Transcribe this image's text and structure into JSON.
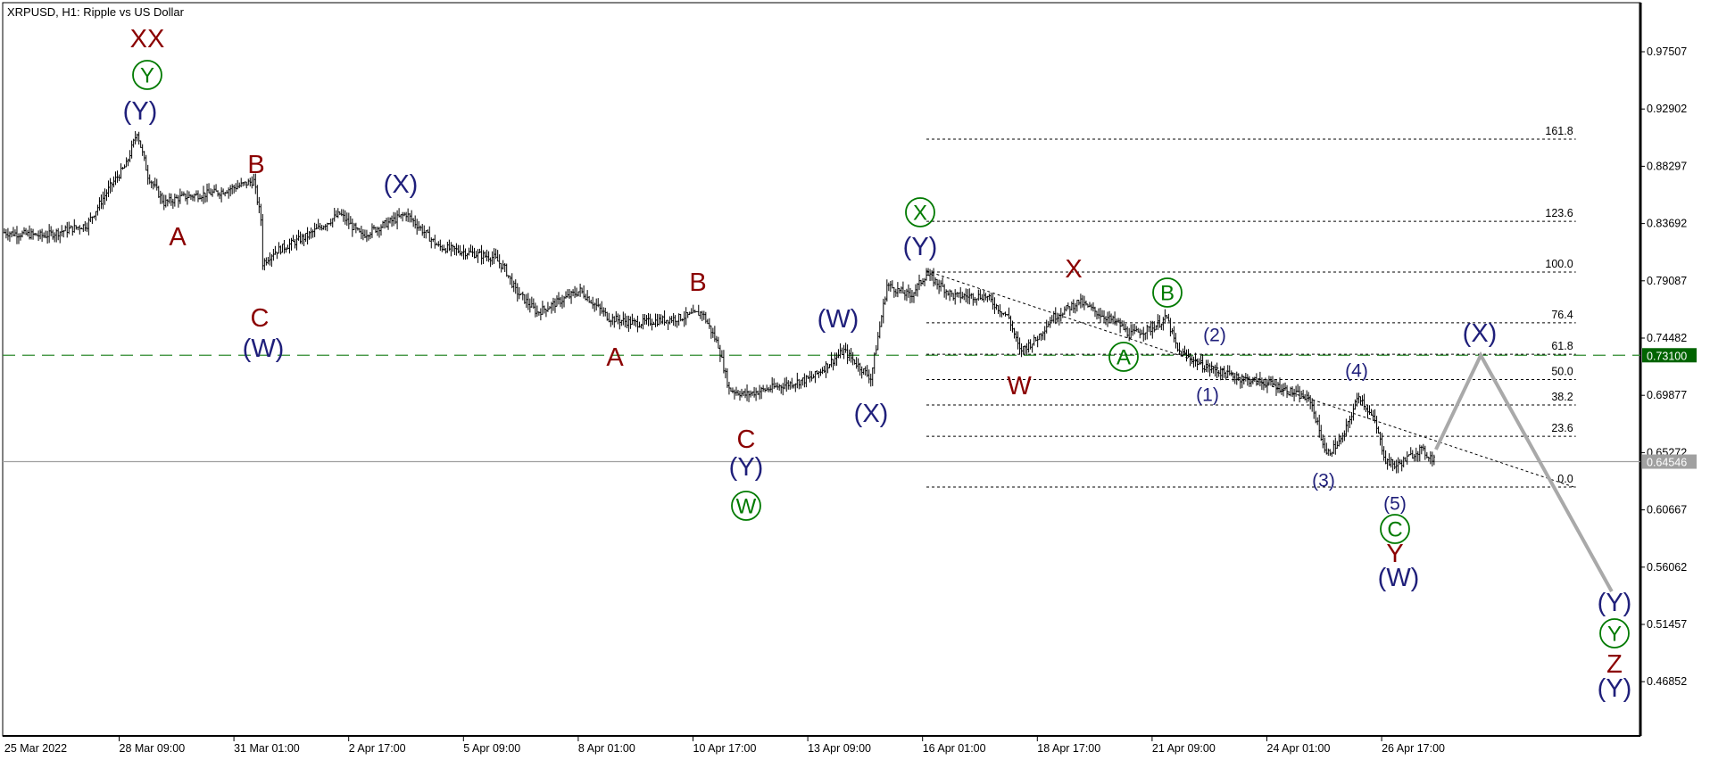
{
  "title": "XRPUSD, H1:  Ripple vs US Dollar",
  "colors": {
    "bars": "#000000",
    "wave_red": "#8b0000",
    "wave_navy": "#1f1f7a",
    "wave_green": "#007a00",
    "level_line": "#2e8b2e",
    "level_badge": "#006400",
    "price_line": "#a0a0a0",
    "price_badge": "#a0a0a0",
    "projection": "#a9a9a9",
    "fib": "#000000"
  },
  "chart_data": {
    "type": "ohlc",
    "symbol": "XRPUSD",
    "timeframe": "H1",
    "y_ticks": [
      "0.97507",
      "0.92902",
      "0.88297",
      "0.83692",
      "0.79087",
      "0.74482",
      "0.69877",
      "0.65272",
      "0.60667",
      "0.56062",
      "0.51457",
      "0.46852"
    ],
    "x_ticks": [
      "25 Mar 2022",
      "28 Mar 09:00",
      "31 Mar 01:00",
      "2 Apr 17:00",
      "5 Apr 09:00",
      "8 Apr 01:00",
      "10 Apr 17:00",
      "13 Apr 09:00",
      "16 Apr 01:00",
      "18 Apr 17:00",
      "21 Apr 09:00",
      "24 Apr 01:00",
      "26 Apr 17:00"
    ],
    "ylim": [
      0.4475,
      1.0
    ],
    "price_path": [
      [
        "25 Mar 17:00",
        0.8297
      ],
      [
        "26 Mar 15:00",
        0.8271
      ],
      [
        "27 Mar 15:00",
        0.8359
      ],
      [
        "28 Mar 04:00",
        0.8667
      ],
      [
        "28 Mar 13:00",
        0.8843
      ],
      [
        "28 Mar 19:00",
        0.9108
      ],
      [
        "29 Mar 01:00",
        0.8755
      ],
      [
        "29 Mar 10:00",
        0.8535
      ],
      [
        "29 Mar 19:00",
        0.8579
      ],
      [
        "30 Mar 17:00",
        0.8623
      ],
      [
        "31 Mar 12:00",
        0.8711
      ],
      [
        "31 Mar 16:00",
        0.8403
      ],
      [
        "31 Mar 17:00",
        0.805
      ],
      [
        "31 Mar 23:00",
        0.8138
      ],
      [
        "1 Apr 18:00",
        0.8271
      ],
      [
        "2 Apr 12:00",
        0.8447
      ],
      [
        "3 Apr 00:00",
        0.8271
      ],
      [
        "4 Apr 01:00",
        0.8447
      ],
      [
        "4 Apr 19:00",
        0.8183
      ],
      [
        "6 Apr 02:00",
        0.8095
      ],
      [
        "6 Apr 08:00",
        0.8006
      ],
      [
        "6 Apr 14:00",
        0.783
      ],
      [
        "7 Apr 02:00",
        0.7654
      ],
      [
        "8 Apr 02:00",
        0.783
      ],
      [
        "8 Apr 18:00",
        0.761
      ],
      [
        "9 Apr 09:00",
        0.7566
      ],
      [
        "10 Apr 09:00",
        0.761
      ],
      [
        "10 Apr 22:00",
        0.7654
      ],
      [
        "11 Apr 07:00",
        0.739
      ],
      [
        "11 Apr 13:00",
        0.7037
      ],
      [
        "11 Apr 22:00",
        0.6993
      ],
      [
        "12 Apr 10:00",
        0.7037
      ],
      [
        "13 Apr 11:00",
        0.7126
      ],
      [
        "14 Apr 05:00",
        0.7346
      ],
      [
        "14 Apr 20:00",
        0.7126
      ],
      [
        "15 Apr 05:00",
        0.7874
      ],
      [
        "15 Apr 18:00",
        0.7786
      ],
      [
        "16 Apr 03:00",
        0.7962
      ],
      [
        "16 Apr 18:00",
        0.7786
      ],
      [
        "17 Apr 12:00",
        0.7786
      ],
      [
        "18 Apr 01:00",
        0.761
      ],
      [
        "18 Apr 07:00",
        0.7346
      ],
      [
        "18 Apr 16:00",
        0.7434
      ],
      [
        "19 Apr 01:00",
        0.761
      ],
      [
        "19 Apr 16:00",
        0.7742
      ],
      [
        "20 Apr 02:00",
        0.7654
      ],
      [
        "20 Apr 14:00",
        0.7566
      ],
      [
        "20 Apr 20:00",
        0.7478
      ],
      [
        "21 Apr 08:00",
        0.7522
      ],
      [
        "21 Apr 17:00",
        0.761
      ],
      [
        "21 Apr 23:00",
        0.7346
      ],
      [
        "22 Apr 15:00",
        0.7213
      ],
      [
        "23 Apr 09:00",
        0.7126
      ],
      [
        "24 Apr 03:00",
        0.7081
      ],
      [
        "25 Apr 01:00",
        0.6949
      ],
      [
        "25 Apr 10:00",
        0.6509
      ],
      [
        "25 Apr 19:00",
        0.6641
      ],
      [
        "26 Apr 04:00",
        0.6993
      ],
      [
        "26 Apr 13:00",
        0.6773
      ],
      [
        "26 Apr 19:00",
        0.6464
      ],
      [
        "27 Apr 01:00",
        0.642
      ],
      [
        "27 Apr 14:00",
        0.6552
      ],
      [
        "27 Apr 23:00",
        0.6464
      ]
    ],
    "horizontal_levels": [
      {
        "price": 0.731,
        "label": "0.73100",
        "style": "dashed",
        "color": "#2e8b2e"
      },
      {
        "price": 0.64546,
        "label": "0.64546",
        "style": "solid",
        "color": "#a0a0a0"
      }
    ],
    "fibonacci": {
      "start": "16 Apr 03:00",
      "end": "1 May 05:00",
      "price_0": 0.625,
      "price_100": 0.7979,
      "levels": [
        {
          "ratio": 1.618,
          "label": "161.8"
        },
        {
          "ratio": 1.236,
          "label": "123.6"
        },
        {
          "ratio": 1.0,
          "label": "100.0"
        },
        {
          "ratio": 0.764,
          "label": "76.4"
        },
        {
          "ratio": 0.618,
          "label": "61.8"
        },
        {
          "ratio": 0.5,
          "label": "50.0"
        },
        {
          "ratio": 0.382,
          "label": "38.2"
        },
        {
          "ratio": 0.236,
          "label": "23.6"
        },
        {
          "ratio": 0.0,
          "label": "0.0"
        }
      ]
    },
    "trendline": [
      [
        "16 Apr 03:00",
        0.7989
      ],
      [
        "1 May 04:00",
        0.625
      ]
    ],
    "projection": [
      [
        "27 Apr 23:00",
        0.6552
      ],
      [
        "29 Apr 00:00",
        0.731
      ],
      [
        "2 May 01:00",
        0.5411
      ]
    ],
    "wave_labels": [
      {
        "text": "XX",
        "kind": "red"
      },
      {
        "text": "Y",
        "kind": "circle"
      },
      {
        "text": "(Y)",
        "kind": "navy"
      },
      {
        "text": "B",
        "kind": "red"
      },
      {
        "text": "A",
        "kind": "red"
      },
      {
        "text": "(X)",
        "kind": "navy"
      },
      {
        "text": "C",
        "kind": "red"
      },
      {
        "text": "(W)",
        "kind": "navy"
      },
      {
        "text": "B",
        "kind": "red"
      },
      {
        "text": "A",
        "kind": "red"
      },
      {
        "text": "(W)",
        "kind": "navy"
      },
      {
        "text": "(X)",
        "kind": "navy"
      },
      {
        "text": "C",
        "kind": "red"
      },
      {
        "text": "(Y)",
        "kind": "navy"
      },
      {
        "text": "W",
        "kind": "circle"
      },
      {
        "text": "X",
        "kind": "circle"
      },
      {
        "text": "(Y)",
        "kind": "navy"
      },
      {
        "text": "X",
        "kind": "red"
      },
      {
        "text": "W",
        "kind": "red"
      },
      {
        "text": "B",
        "kind": "circle"
      },
      {
        "text": "A",
        "kind": "circle"
      },
      {
        "text": "(2)",
        "kind": "small"
      },
      {
        "text": "(1)",
        "kind": "small"
      },
      {
        "text": "(4)",
        "kind": "small"
      },
      {
        "text": "(3)",
        "kind": "small"
      },
      {
        "text": "(5)",
        "kind": "small"
      },
      {
        "text": "C",
        "kind": "circle"
      },
      {
        "text": "Y",
        "kind": "red"
      },
      {
        "text": "(W)",
        "kind": "navy"
      },
      {
        "text": "(X)",
        "kind": "navy"
      },
      {
        "text": "(Y)",
        "kind": "navy"
      },
      {
        "text": "Y",
        "kind": "circle"
      },
      {
        "text": "Z",
        "kind": "red"
      },
      {
        "text": "(Y)",
        "kind": "navy"
      }
    ]
  }
}
